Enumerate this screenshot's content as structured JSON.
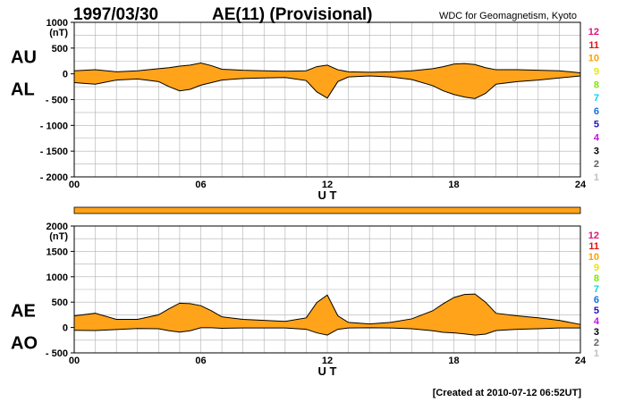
{
  "page": {
    "date": "1997/03/30",
    "index_title": "AE(11) (Provisional)",
    "source": "WDC for Geomagnetism, Kyoto",
    "created": "[Created at 2010-07-12 06:52UT]"
  },
  "colors": {
    "fill": "#FFA31A",
    "line": "#000000",
    "grid": "#B0B0B0"
  },
  "station_count_scale": {
    "labels": [
      "12",
      "11",
      "10",
      "9",
      "8",
      "7",
      "6",
      "5",
      "4",
      "3",
      "2",
      "1"
    ],
    "colors": [
      "#E0147C",
      "#E01414",
      "#FFA000",
      "#E8E800",
      "#7CE800",
      "#00D8E0",
      "#1470E0",
      "#2010C0",
      "#C014E0",
      "#000000",
      "#606060",
      "#C0C0C0"
    ]
  },
  "chart_data": [
    {
      "type": "area",
      "name": "AU/AL",
      "upper_label": "AU",
      "lower_label": "AL",
      "unit_label": "(nT)",
      "xlabel": "U T",
      "xlim": [
        0,
        24
      ],
      "ylim": [
        -2000,
        1000
      ],
      "xticks": [
        0,
        6,
        12,
        18,
        24
      ],
      "xtick_labels": [
        "00",
        "06",
        "12",
        "18",
        "24"
      ],
      "yticks": [
        1000,
        500,
        0,
        -500,
        -1000,
        -1500,
        -2000
      ],
      "ytick_labels": [
        "1000",
        "500",
        "0",
        "- 500",
        "- 1000",
        "- 1500",
        "- 2000"
      ],
      "x": [
        0,
        1,
        2,
        3,
        4,
        4.5,
        5,
        5.5,
        6,
        6.5,
        7,
        8,
        9,
        10,
        11,
        11.5,
        12,
        12.5,
        13,
        14,
        15,
        16,
        17,
        17.5,
        18,
        18.5,
        19,
        19.5,
        20,
        21,
        22,
        23,
        24
      ],
      "series": [
        {
          "values": [
            60,
            80,
            40,
            60,
            100,
            120,
            150,
            170,
            210,
            160,
            90,
            70,
            60,
            50,
            60,
            140,
            170,
            80,
            40,
            30,
            40,
            60,
            100,
            140,
            190,
            200,
            180,
            120,
            80,
            80,
            70,
            60,
            20
          ]
        },
        {
          "values": [
            -170,
            -200,
            -120,
            -100,
            -150,
            -250,
            -330,
            -300,
            -220,
            -170,
            -120,
            -90,
            -80,
            -70,
            -130,
            -350,
            -470,
            -150,
            -60,
            -40,
            -60,
            -110,
            -230,
            -330,
            -400,
            -450,
            -480,
            -380,
            -200,
            -150,
            -120,
            -80,
            -40
          ]
        }
      ]
    },
    {
      "type": "area",
      "name": "AE/AO",
      "upper_label": "AE",
      "lower_label": "AO",
      "unit_label": "(nT)",
      "xlabel": "U T",
      "xlim": [
        0,
        24
      ],
      "ylim": [
        -500,
        2000
      ],
      "xticks": [
        0,
        6,
        12,
        18,
        24
      ],
      "xtick_labels": [
        "00",
        "06",
        "12",
        "18",
        "24"
      ],
      "yticks": [
        2000,
        1500,
        1000,
        500,
        0,
        -500
      ],
      "ytick_labels": [
        "2000",
        "1500",
        "1000",
        "500",
        "0",
        "- 500"
      ],
      "x": [
        0,
        1,
        2,
        3,
        4,
        4.5,
        5,
        5.5,
        6,
        6.5,
        7,
        8,
        9,
        10,
        11,
        11.5,
        12,
        12.5,
        13,
        14,
        15,
        16,
        17,
        17.5,
        18,
        18.5,
        19,
        19.5,
        20,
        21,
        22,
        23,
        24
      ],
      "series": [
        {
          "values": [
            230,
            280,
            160,
            160,
            250,
            370,
            480,
            470,
            430,
            330,
            210,
            160,
            140,
            120,
            190,
            490,
            640,
            230,
            100,
            70,
            100,
            170,
            330,
            470,
            590,
            650,
            660,
            500,
            280,
            230,
            190,
            140,
            60
          ]
        },
        {
          "values": [
            -55,
            -60,
            -40,
            -20,
            -25,
            -65,
            -90,
            -65,
            -5,
            -5,
            -15,
            -10,
            -10,
            -10,
            -35,
            -105,
            -150,
            -35,
            -10,
            -5,
            -10,
            -25,
            -65,
            -95,
            -105,
            -125,
            -150,
            -130,
            -60,
            -35,
            -25,
            -10,
            -10
          ]
        }
      ]
    }
  ]
}
